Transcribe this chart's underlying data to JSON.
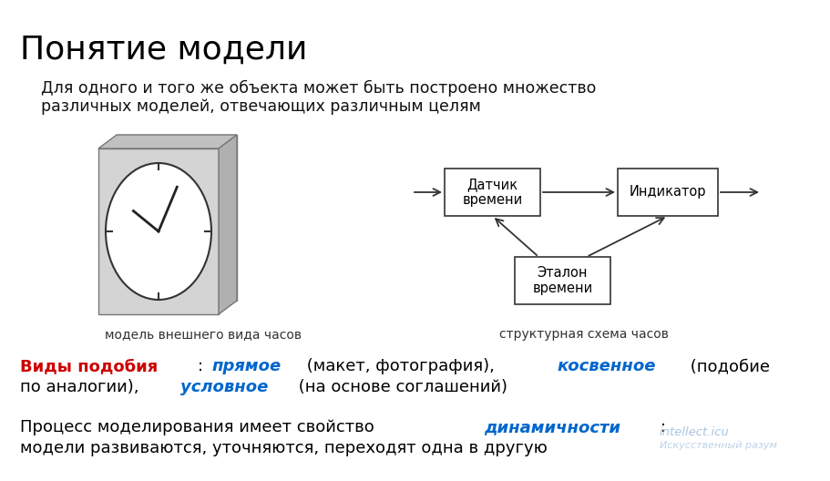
{
  "title": "Понятие модели",
  "subtitle_line1": "Для одного и того же объекта может быть построено множество",
  "subtitle_line2": "различных моделей, отвечающих различным целям",
  "clock_label": "модель внешнего вида часов",
  "diagram_label": "структурная схема часов",
  "box1_text": "Датчик\nвремени",
  "box2_text": "Индикатор",
  "box3_text": "Эталон\nвремени",
  "vidy_line1_parts": [
    {
      "text": "Виды подобия",
      "color": "#cc0000",
      "bold": true,
      "italic": false
    },
    {
      "text": ": ",
      "color": "#000000",
      "bold": false,
      "italic": false
    },
    {
      "text": "прямое",
      "color": "#0066cc",
      "bold": true,
      "italic": true
    },
    {
      "text": " (макет, фотография), ",
      "color": "#000000",
      "bold": false,
      "italic": false
    },
    {
      "text": "косвенное",
      "color": "#0066cc",
      "bold": true,
      "italic": true
    },
    {
      "text": " (подобие",
      "color": "#000000",
      "bold": false,
      "italic": false
    }
  ],
  "vidy_line2_parts": [
    {
      "text": "по аналогии), ",
      "color": "#000000",
      "bold": false,
      "italic": false
    },
    {
      "text": "условное",
      "color": "#0066cc",
      "bold": true,
      "italic": true
    },
    {
      "text": " (на основе соглашений)",
      "color": "#000000",
      "bold": false,
      "italic": false
    }
  ],
  "process_line1_parts": [
    {
      "text": "Процесс моделирования имеет свойство ",
      "color": "#000000",
      "bold": false,
      "italic": false
    },
    {
      "text": "динамичности",
      "color": "#0066cc",
      "bold": true,
      "italic": true
    },
    {
      "text": ":",
      "color": "#000000",
      "bold": false,
      "italic": false
    }
  ],
  "process_line2": "модели развиваются, уточняются, переходят одна в другую",
  "watermark1": "intellect.icu",
  "watermark2": "Искусственный разум",
  "bg_color": "#ffffff"
}
